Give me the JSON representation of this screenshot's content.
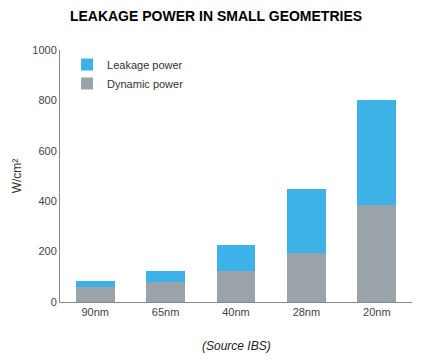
{
  "chart_data": {
    "type": "bar",
    "title": "LEAKAGE POWER IN SMALL GEOMETRIES",
    "y_label": "W/cm²",
    "annotations": [
      "(Source IBS)"
    ],
    "categories": [
      "90nm",
      "65nm",
      "40nm",
      "28nm",
      "20nm"
    ],
    "series": [
      {
        "name": "Dynamic power",
        "color": "#9aa3a9",
        "values": [
          60,
          80,
          125,
          195,
          385
        ]
      },
      {
        "name": "Leakage power",
        "color": "#3db2e8",
        "values": [
          25,
          45,
          100,
          255,
          415
        ]
      }
    ],
    "stacked": true,
    "ylim": [
      0,
      1000
    ],
    "yticks": [
      0,
      200,
      400,
      600,
      800,
      1000
    ],
    "grid": false,
    "legend": "upper left"
  }
}
